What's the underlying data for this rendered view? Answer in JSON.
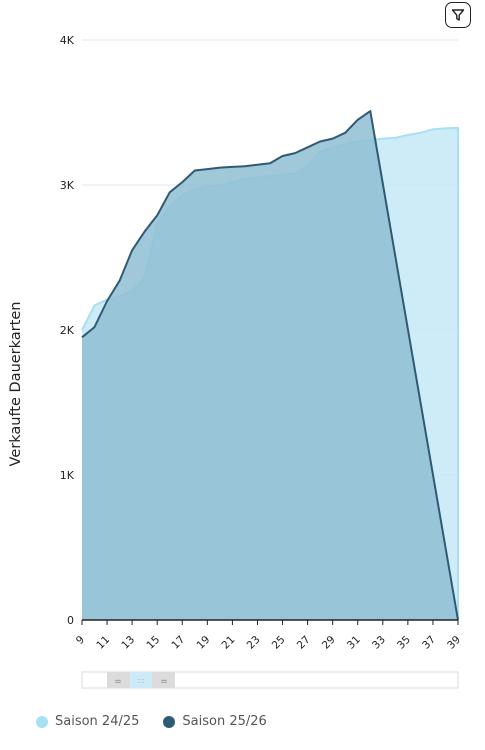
{
  "chart_data": {
    "type": "area",
    "title": "",
    "xlabel": "",
    "ylabel": "Verkaufte Dauerkarten",
    "y_ticks": [
      "0",
      "1K",
      "2K",
      "3K",
      "4K"
    ],
    "ylim": [
      0,
      4000
    ],
    "xlim": [
      9,
      39
    ],
    "x_ticks": [
      9,
      11,
      13,
      15,
      17,
      19,
      21,
      23,
      25,
      27,
      29,
      31,
      33,
      35,
      37,
      39
    ],
    "grid": true,
    "legend_position": "bottom-left",
    "series": [
      {
        "name": "Saison 24/25",
        "color": "#a6e0f2",
        "points": [
          [
            9,
            2000
          ],
          [
            10,
            2170
          ],
          [
            11,
            2210
          ],
          [
            12,
            2230
          ],
          [
            13,
            2270
          ],
          [
            14,
            2360
          ],
          [
            15,
            2730
          ],
          [
            16,
            2850
          ],
          [
            17,
            2930
          ],
          [
            18,
            2970
          ],
          [
            19,
            2990
          ],
          [
            20,
            3000
          ],
          [
            21,
            3020
          ],
          [
            22,
            3040
          ],
          [
            23,
            3050
          ],
          [
            24,
            3060
          ],
          [
            25,
            3070
          ],
          [
            26,
            3080
          ],
          [
            27,
            3130
          ],
          [
            28,
            3230
          ],
          [
            29,
            3260
          ],
          [
            30,
            3280
          ],
          [
            31,
            3300
          ],
          [
            32,
            3310
          ],
          [
            33,
            3320
          ],
          [
            34,
            3325
          ],
          [
            35,
            3345
          ],
          [
            36,
            3360
          ],
          [
            37,
            3385
          ],
          [
            38,
            3390
          ],
          [
            39,
            3395
          ],
          [
            39,
            0
          ]
        ]
      },
      {
        "name": "Saison 25/26",
        "color": "#2e5a75",
        "points": [
          [
            9,
            1950
          ],
          [
            10,
            2020
          ],
          [
            11,
            2200
          ],
          [
            12,
            2340
          ],
          [
            13,
            2550
          ],
          [
            14,
            2680
          ],
          [
            15,
            2790
          ],
          [
            16,
            2950
          ],
          [
            17,
            3020
          ],
          [
            18,
            3100
          ],
          [
            19,
            3110
          ],
          [
            20,
            3120
          ],
          [
            21,
            3125
          ],
          [
            22,
            3130
          ],
          [
            23,
            3140
          ],
          [
            24,
            3150
          ],
          [
            25,
            3200
          ],
          [
            26,
            3220
          ],
          [
            27,
            3260
          ],
          [
            28,
            3300
          ],
          [
            29,
            3320
          ],
          [
            30,
            3360
          ],
          [
            31,
            3450
          ],
          [
            32,
            3510
          ],
          [
            39,
            0
          ]
        ]
      }
    ]
  },
  "toolbar": {
    "filter_icon": "filter-icon"
  },
  "navigator": {
    "handle_left": "=",
    "handle_mid": ":::",
    "handle_right": "="
  }
}
